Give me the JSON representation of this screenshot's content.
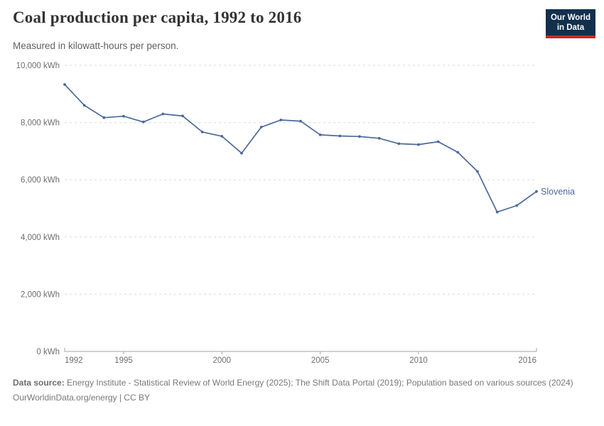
{
  "header": {
    "title": "Coal production per capita, 1992 to 2016",
    "subtitle": "Measured in kilowatt-hours per person."
  },
  "logo": {
    "line1": "Our World",
    "line2": "in Data",
    "bg_color": "#12304E",
    "stripe_color": "#C62B21"
  },
  "chart_data": {
    "type": "line",
    "title": "Coal production per capita, 1992 to 2016",
    "subtitle": "Measured in kilowatt-hours per person.",
    "unit": "kWh",
    "x": [
      1992,
      1993,
      1994,
      1995,
      1996,
      1997,
      1998,
      1999,
      2000,
      2001,
      2002,
      2003,
      2004,
      2005,
      2006,
      2007,
      2008,
      2009,
      2010,
      2011,
      2012,
      2013,
      2014,
      2015,
      2016
    ],
    "series": [
      {
        "name": "Slovenia",
        "color": "#4C6A9C",
        "values": [
          9330,
          8600,
          8170,
          8220,
          8020,
          8300,
          8230,
          7670,
          7520,
          6930,
          7840,
          8090,
          8050,
          7570,
          7530,
          7510,
          7450,
          7260,
          7230,
          7330,
          6960,
          6290,
          4870,
          5100,
          5590
        ]
      }
    ],
    "xlabel": "",
    "ylabel": "",
    "xlim": [
      1992,
      2016
    ],
    "ylim": [
      0,
      10000
    ],
    "x_ticks": {
      "values": [
        1992,
        1995,
        2000,
        2005,
        2010,
        2016
      ],
      "labels": [
        "1992",
        "1995",
        "2000",
        "2005",
        "2010",
        "2016"
      ]
    },
    "y_ticks": {
      "values": [
        0,
        2000,
        4000,
        6000,
        8000,
        10000
      ],
      "labels": [
        "0 kWh",
        "2,000 kWh",
        "4,000 kWh",
        "6,000 kWh",
        "8,000 kWh",
        "10,000 kWh"
      ]
    },
    "grid": "horizontal-dashed",
    "legend": "entity-label-at-line-end",
    "styles": {
      "gridline_color": "#dcdcdc",
      "axis_color": "#a3a3a3",
      "tick_label_color": "#6e6e6e"
    }
  },
  "footer": {
    "source_label": "Data source:",
    "source_text": "Energy Institute - Statistical Review of World Energy (2025); The Shift Data Portal (2019); Population based on various sources (2024)",
    "link_text": "OurWorldinData.org/energy | CC BY"
  }
}
